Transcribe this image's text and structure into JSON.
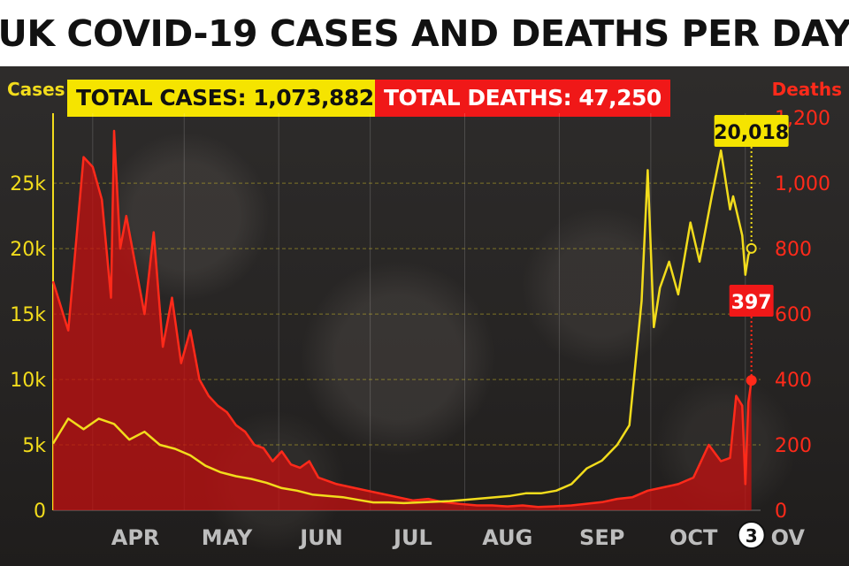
{
  "title": "UK COVID-19 CASES AND DEATHS PER DAY",
  "totals": {
    "cases_label": "TOTAL CASES: 1,073,882",
    "deaths_label": "TOTAL DEATHS: 47,250"
  },
  "colors": {
    "cases": "#f2dc1c",
    "deaths": "#ff2a1a",
    "deaths_fill": "#c41010",
    "background": "#2a2827"
  },
  "chart_data": {
    "type": "line",
    "ylabel_left": "Cases",
    "ylabel_right": "Deaths",
    "ylim_left": [
      0,
      29000
    ],
    "ylim_right": [
      0,
      1160
    ],
    "yticks_left": [
      {
        "value": 0,
        "label": "0"
      },
      {
        "value": 5000,
        "label": "5k"
      },
      {
        "value": 10000,
        "label": "10k"
      },
      {
        "value": 15000,
        "label": "15k"
      },
      {
        "value": 20000,
        "label": "20k"
      },
      {
        "value": 25000,
        "label": "25k"
      }
    ],
    "yticks_right": [
      {
        "value": 0,
        "label": "0"
      },
      {
        "value": 200,
        "label": "200"
      },
      {
        "value": 400,
        "label": "400"
      },
      {
        "value": 600,
        "label": "600"
      },
      {
        "value": 800,
        "label": "800"
      },
      {
        "value": 1000,
        "label": "1,000"
      },
      {
        "value": 1200,
        "label": "1,200"
      }
    ],
    "months": [
      "APR",
      "MAY",
      "JUN",
      "JUL",
      "AUG",
      "SEP",
      "OCT",
      "NOV"
    ],
    "end_marker_day": "3",
    "series": [
      {
        "name": "Cases",
        "axis": "left",
        "x": [
          "03-19",
          "03-24",
          "03-29",
          "04-03",
          "04-08",
          "04-13",
          "04-18",
          "04-23",
          "04-28",
          "05-03",
          "05-08",
          "05-13",
          "05-18",
          "05-23",
          "05-28",
          "06-02",
          "06-07",
          "06-12",
          "06-17",
          "06-22",
          "06-27",
          "07-02",
          "07-07",
          "07-12",
          "07-17",
          "07-22",
          "07-27",
          "08-01",
          "08-06",
          "08-11",
          "08-16",
          "08-21",
          "08-26",
          "08-31",
          "09-05",
          "09-10",
          "09-15",
          "09-20",
          "09-24",
          "09-28",
          "09-30",
          "10-02",
          "10-04",
          "10-07",
          "10-10",
          "10-14",
          "10-17",
          "10-21",
          "10-24",
          "10-27",
          "10-28",
          "10-31",
          "11-01",
          "11-02",
          "11-03"
        ],
        "values": [
          5100,
          7000,
          6200,
          7000,
          6600,
          5400,
          6000,
          5000,
          4700,
          4200,
          3400,
          2900,
          2600,
          2400,
          2100,
          1700,
          1500,
          1200,
          1100,
          1000,
          800,
          600,
          600,
          550,
          600,
          650,
          700,
          800,
          900,
          1000,
          1100,
          1300,
          1300,
          1500,
          2000,
          3200,
          3800,
          5000,
          6500,
          16000,
          26000,
          14000,
          17000,
          19000,
          16500,
          22000,
          19000,
          24000,
          27500,
          23000,
          24000,
          21000,
          18000,
          19500,
          20018
        ]
      },
      {
        "name": "Deaths",
        "axis": "right",
        "x": [
          "03-19",
          "03-24",
          "03-29",
          "04-01",
          "04-04",
          "04-07",
          "04-08",
          "04-10",
          "04-12",
          "04-15",
          "04-18",
          "04-21",
          "04-24",
          "04-27",
          "04-30",
          "05-03",
          "05-06",
          "05-09",
          "05-12",
          "05-15",
          "05-18",
          "05-21",
          "05-24",
          "05-27",
          "05-30",
          "06-02",
          "06-05",
          "06-08",
          "06-11",
          "06-14",
          "06-17",
          "06-20",
          "06-25",
          "06-30",
          "07-05",
          "07-10",
          "07-15",
          "07-20",
          "07-25",
          "07-30",
          "08-05",
          "08-10",
          "08-15",
          "08-20",
          "08-25",
          "08-30",
          "09-05",
          "09-10",
          "09-15",
          "09-20",
          "09-25",
          "09-30",
          "10-05",
          "10-10",
          "10-15",
          "10-20",
          "10-24",
          "10-27",
          "10-29",
          "10-31",
          "11-01",
          "11-02",
          "11-03"
        ],
        "values": [
          700,
          550,
          1080,
          1050,
          950,
          650,
          1160,
          800,
          900,
          750,
          600,
          850,
          500,
          650,
          450,
          550,
          400,
          350,
          320,
          300,
          260,
          240,
          200,
          190,
          150,
          180,
          140,
          130,
          150,
          100,
          90,
          80,
          70,
          60,
          50,
          40,
          30,
          35,
          25,
          20,
          15,
          15,
          12,
          15,
          10,
          12,
          15,
          20,
          25,
          35,
          40,
          60,
          70,
          80,
          100,
          200,
          150,
          160,
          350,
          320,
          80,
          330,
          397
        ]
      }
    ],
    "annotations": [
      {
        "series": "Cases",
        "x": "11-03",
        "value": 20018,
        "label": "20,018"
      },
      {
        "series": "Deaths",
        "x": "11-03",
        "value": 397,
        "label": "397"
      }
    ]
  }
}
